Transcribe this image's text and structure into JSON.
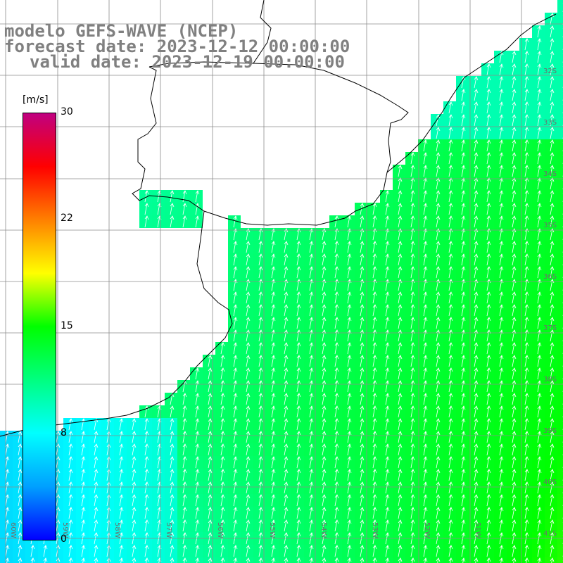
{
  "title": {
    "line1": "modelo GEFS-WAVE (NCEP)",
    "line2": "forecast date: 2023-12-12 00:00:00",
    "line3": "valid date: 2023-12-19 00:00:00"
  },
  "colorbar": {
    "unit": "[m/s]",
    "ticks": [
      "30",
      "22",
      "15",
      "8",
      "0"
    ],
    "colors": [
      "#0000ff",
      "#00a0ff",
      "#00ffff",
      "#00ff80",
      "#00ff00",
      "#ffff00",
      "#ff8000",
      "#ff0000",
      "#c00080"
    ]
  },
  "map": {
    "lat_labels": [
      "32S",
      "33S",
      "34S",
      "35S",
      "36S",
      "37S",
      "38S",
      "39S",
      "40S",
      "41S"
    ],
    "lon_labels": [
      "60W",
      "59W",
      "58W",
      "57W",
      "56W",
      "55W",
      "54W",
      "53W",
      "52W",
      "51W"
    ],
    "colors": {
      "land": "#ffffff",
      "coast": "#000000",
      "grid": "#8c8c8c",
      "arrows": "#ffffff"
    }
  }
}
